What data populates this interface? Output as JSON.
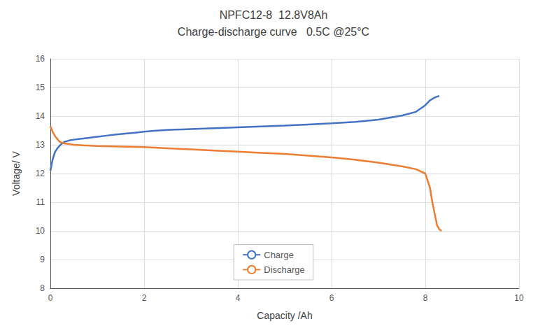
{
  "chart_data": {
    "type": "line",
    "title": "NPFC12-8  12.8V8Ah",
    "subtitle": "Charge-discharge curve   0.5C @25°C",
    "xlabel": "Capacity /Ah",
    "ylabel": "Voltage/ V",
    "xlim": [
      0,
      10
    ],
    "ylim": [
      8,
      16
    ],
    "xticks": [
      0,
      2,
      4,
      6,
      8,
      10
    ],
    "yticks": [
      8,
      9,
      10,
      11,
      12,
      13,
      14,
      15,
      16
    ],
    "grid": true,
    "legend": "lower center",
    "series": [
      {
        "name": "Charge",
        "color": "#4472C4",
        "x": [
          0.0,
          0.05,
          0.1,
          0.15,
          0.2,
          0.25,
          0.3,
          0.4,
          0.5,
          0.6,
          0.7,
          0.8,
          0.9,
          1.0,
          1.2,
          1.4,
          1.6,
          1.8,
          2.0,
          2.2,
          2.5,
          3.0,
          3.5,
          4.0,
          4.5,
          5.0,
          5.5,
          6.0,
          6.5,
          7.0,
          7.5,
          7.8,
          8.0,
          8.1,
          8.2,
          8.25,
          8.3
        ],
        "values": [
          12.1,
          12.5,
          12.75,
          12.88,
          12.97,
          13.05,
          13.1,
          13.15,
          13.18,
          13.2,
          13.22,
          13.24,
          13.26,
          13.28,
          13.32,
          13.36,
          13.39,
          13.42,
          13.46,
          13.49,
          13.52,
          13.55,
          13.58,
          13.61,
          13.64,
          13.67,
          13.71,
          13.75,
          13.8,
          13.88,
          14.02,
          14.15,
          14.38,
          14.55,
          14.65,
          14.68,
          14.7
        ]
      },
      {
        "name": "Discharge",
        "color": "#ED7D31",
        "x": [
          0.0,
          0.05,
          0.1,
          0.15,
          0.2,
          0.3,
          0.5,
          0.7,
          1.0,
          1.5,
          2.0,
          2.5,
          3.0,
          3.5,
          4.0,
          4.5,
          5.0,
          5.5,
          6.0,
          6.5,
          7.0,
          7.5,
          7.8,
          8.0,
          8.1,
          8.15,
          8.2,
          8.25,
          8.3,
          8.35
        ],
        "values": [
          13.65,
          13.45,
          13.3,
          13.2,
          13.1,
          13.05,
          13.0,
          12.98,
          12.96,
          12.94,
          12.92,
          12.88,
          12.84,
          12.8,
          12.76,
          12.72,
          12.68,
          12.62,
          12.56,
          12.48,
          12.38,
          12.25,
          12.15,
          12.0,
          11.5,
          11.0,
          10.6,
          10.2,
          10.05,
          10.0
        ]
      }
    ]
  }
}
